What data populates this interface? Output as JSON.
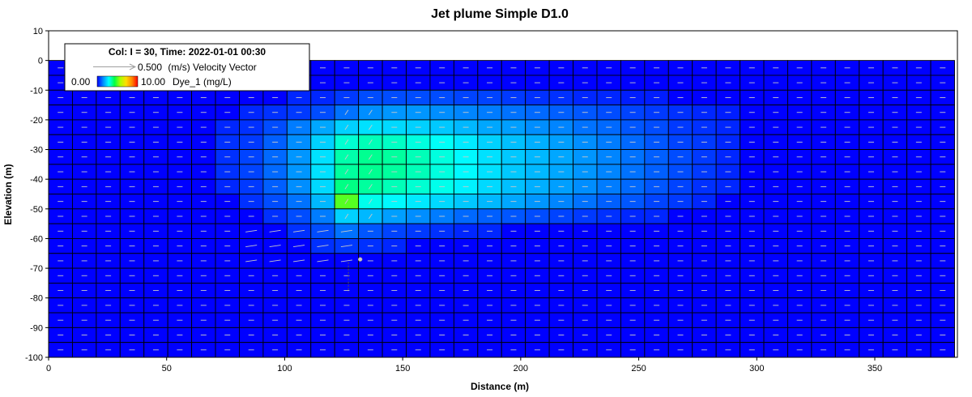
{
  "chart_data": {
    "type": "heatmap",
    "title": "Jet plume Simple D1.0",
    "xlabel": "Distance (m)",
    "ylabel": "Elevation (m)",
    "xlim": [
      0,
      385
    ],
    "ylim": [
      -100,
      10
    ],
    "xticks": [
      0,
      50,
      100,
      150,
      200,
      250,
      300,
      350
    ],
    "yticks": [
      10,
      0,
      -10,
      -20,
      -30,
      -40,
      -50,
      -60,
      -70,
      -80,
      -90,
      -100
    ],
    "grid": {
      "x_cells": 38,
      "cell_width_m": 10.1,
      "layers": 20,
      "layer_thickness_m": 5,
      "surface_elevation": 0,
      "bottom_elevation": -100
    },
    "legend": {
      "header": "Col: I = 30, Time: 2022-01-01 00:30",
      "vector_value": "0.500",
      "vector_label": "(m/s) Velocity Vector",
      "scale_min": "0.00",
      "scale_max": "10.00",
      "scale_label": "Dye_1 (mg/L)",
      "placement": "top-left"
    },
    "colormap": [
      "#0000ff",
      "#0088ff",
      "#00ffff",
      "#00ff44",
      "#aaff00",
      "#ffdd00",
      "#ff8800",
      "#ff0000"
    ],
    "vector_color": "#c8c8c8",
    "source_marker_color": "#c8c8c8",
    "concentration_rows": [
      {
        "z_top": -10,
        "z_bottom": -15,
        "cells": [
          [
            10,
            0.4
          ],
          [
            11,
            0.4
          ],
          [
            12,
            0.6
          ],
          [
            13,
            0.8
          ],
          [
            14,
            0.8
          ],
          [
            15,
            0.8
          ],
          [
            16,
            0.8
          ],
          [
            17,
            0.7
          ],
          [
            18,
            0.7
          ],
          [
            19,
            0.6
          ],
          [
            20,
            0.5
          ],
          [
            21,
            0.5
          ],
          [
            22,
            0.4
          ],
          [
            23,
            0.4
          ],
          [
            24,
            0.3
          ],
          [
            25,
            0.3
          ]
        ]
      },
      {
        "z_top": -15,
        "z_bottom": -20,
        "cells": [
          [
            8,
            0.4
          ],
          [
            9,
            0.5
          ],
          [
            10,
            0.6
          ],
          [
            11,
            0.8
          ],
          [
            12,
            1.2
          ],
          [
            13,
            1.5
          ],
          [
            14,
            1.6
          ],
          [
            15,
            1.6
          ],
          [
            16,
            1.5
          ],
          [
            17,
            1.4
          ],
          [
            18,
            1.3
          ],
          [
            19,
            1.2
          ],
          [
            20,
            1.1
          ],
          [
            21,
            1.0
          ],
          [
            22,
            0.9
          ],
          [
            23,
            0.8
          ],
          [
            24,
            0.7
          ],
          [
            25,
            0.6
          ],
          [
            26,
            0.5
          ],
          [
            27,
            0.4
          ],
          [
            28,
            0.3
          ]
        ]
      },
      {
        "z_top": -20,
        "z_bottom": -25,
        "cells": [
          [
            7,
            0.4
          ],
          [
            8,
            0.5
          ],
          [
            9,
            0.8
          ],
          [
            10,
            1.3
          ],
          [
            11,
            1.8
          ],
          [
            12,
            2.3
          ],
          [
            13,
            2.5
          ],
          [
            14,
            2.4
          ],
          [
            15,
            2.3
          ],
          [
            16,
            2.2
          ],
          [
            17,
            2.0
          ],
          [
            18,
            1.8
          ],
          [
            19,
            1.7
          ],
          [
            20,
            1.5
          ],
          [
            21,
            1.4
          ],
          [
            22,
            1.2
          ],
          [
            23,
            1.1
          ],
          [
            24,
            0.9
          ],
          [
            25,
            0.8
          ],
          [
            26,
            0.6
          ],
          [
            27,
            0.5
          ],
          [
            28,
            0.4
          ]
        ]
      },
      {
        "z_top": -25,
        "z_bottom": -30,
        "cells": [
          [
            7,
            0.5
          ],
          [
            8,
            0.6
          ],
          [
            9,
            1.0
          ],
          [
            10,
            1.5
          ],
          [
            11,
            2.3
          ],
          [
            12,
            3.2
          ],
          [
            13,
            3.4
          ],
          [
            14,
            3.3
          ],
          [
            15,
            3.1
          ],
          [
            16,
            2.9
          ],
          [
            17,
            2.6
          ],
          [
            18,
            2.3
          ],
          [
            19,
            2.1
          ],
          [
            20,
            1.9
          ],
          [
            21,
            1.7
          ],
          [
            22,
            1.5
          ],
          [
            23,
            1.3
          ],
          [
            24,
            1.1
          ],
          [
            25,
            0.9
          ],
          [
            26,
            0.7
          ],
          [
            27,
            0.6
          ],
          [
            28,
            0.4
          ]
        ]
      },
      {
        "z_top": -30,
        "z_bottom": -35,
        "cells": [
          [
            7,
            0.5
          ],
          [
            8,
            0.7
          ],
          [
            9,
            1.1
          ],
          [
            10,
            1.6
          ],
          [
            11,
            2.5
          ],
          [
            12,
            3.5
          ],
          [
            13,
            3.7
          ],
          [
            14,
            3.6
          ],
          [
            15,
            3.4
          ],
          [
            16,
            3.1
          ],
          [
            17,
            2.8
          ],
          [
            18,
            2.5
          ],
          [
            19,
            2.2
          ],
          [
            20,
            2.0
          ],
          [
            21,
            1.8
          ],
          [
            22,
            1.6
          ],
          [
            23,
            1.4
          ],
          [
            24,
            1.2
          ],
          [
            25,
            1.0
          ],
          [
            26,
            0.8
          ],
          [
            27,
            0.6
          ],
          [
            28,
            0.4
          ]
        ]
      },
      {
        "z_top": -35,
        "z_bottom": -40,
        "cells": [
          [
            7,
            0.5
          ],
          [
            8,
            0.7
          ],
          [
            9,
            1.1
          ],
          [
            10,
            1.6
          ],
          [
            11,
            2.5
          ],
          [
            12,
            3.6
          ],
          [
            13,
            3.7
          ],
          [
            14,
            3.6
          ],
          [
            15,
            3.4
          ],
          [
            16,
            3.1
          ],
          [
            17,
            2.8
          ],
          [
            18,
            2.5
          ],
          [
            19,
            2.2
          ],
          [
            20,
            2.0
          ],
          [
            21,
            1.8
          ],
          [
            22,
            1.6
          ],
          [
            23,
            1.4
          ],
          [
            24,
            1.2
          ],
          [
            25,
            1.0
          ],
          [
            26,
            0.8
          ],
          [
            27,
            0.6
          ],
          [
            28,
            0.4
          ]
        ]
      },
      {
        "z_top": -40,
        "z_bottom": -45,
        "cells": [
          [
            7,
            0.4
          ],
          [
            8,
            0.6
          ],
          [
            9,
            1.0
          ],
          [
            10,
            1.5
          ],
          [
            11,
            2.4
          ],
          [
            12,
            3.8
          ],
          [
            13,
            3.6
          ],
          [
            14,
            3.4
          ],
          [
            15,
            3.2
          ],
          [
            16,
            3.0
          ],
          [
            17,
            2.7
          ],
          [
            18,
            2.4
          ],
          [
            19,
            2.1
          ],
          [
            20,
            1.9
          ],
          [
            21,
            1.7
          ],
          [
            22,
            1.5
          ],
          [
            23,
            1.3
          ],
          [
            24,
            1.1
          ],
          [
            25,
            0.9
          ],
          [
            26,
            0.7
          ],
          [
            27,
            0.5
          ],
          [
            28,
            0.4
          ]
        ]
      },
      {
        "z_top": -45,
        "z_bottom": -50,
        "cells": [
          [
            8,
            0.5
          ],
          [
            9,
            0.8
          ],
          [
            10,
            1.2
          ],
          [
            11,
            2.0
          ],
          [
            12,
            5.0
          ],
          [
            13,
            3.0
          ],
          [
            14,
            2.8
          ],
          [
            15,
            2.6
          ],
          [
            16,
            2.4
          ],
          [
            17,
            2.2
          ],
          [
            18,
            2.0
          ],
          [
            19,
            1.8
          ],
          [
            20,
            1.6
          ],
          [
            21,
            1.4
          ],
          [
            22,
            1.2
          ],
          [
            23,
            1.0
          ],
          [
            24,
            0.9
          ],
          [
            25,
            0.7
          ],
          [
            26,
            0.6
          ],
          [
            27,
            0.4
          ]
        ]
      },
      {
        "z_top": -50,
        "z_bottom": -55,
        "cells": [
          [
            9,
            0.5
          ],
          [
            10,
            0.8
          ],
          [
            11,
            1.3
          ],
          [
            12,
            2.3
          ],
          [
            13,
            2.0
          ],
          [
            14,
            1.7
          ],
          [
            15,
            1.5
          ],
          [
            16,
            1.3
          ],
          [
            17,
            1.1
          ],
          [
            18,
            1.0
          ],
          [
            19,
            0.9
          ],
          [
            20,
            0.8
          ],
          [
            21,
            0.7
          ],
          [
            22,
            0.6
          ],
          [
            23,
            0.5
          ],
          [
            24,
            0.4
          ],
          [
            25,
            0.4
          ]
        ]
      },
      {
        "z_top": -55,
        "z_bottom": -60,
        "cells": [
          [
            10,
            0.5
          ],
          [
            11,
            0.8
          ],
          [
            12,
            1.2
          ],
          [
            13,
            0.9
          ],
          [
            14,
            0.7
          ],
          [
            15,
            0.6
          ],
          [
            16,
            0.5
          ],
          [
            17,
            0.4
          ],
          [
            18,
            0.4
          ]
        ]
      },
      {
        "z_top": -60,
        "z_bottom": -65,
        "cells": [
          [
            11,
            0.5
          ],
          [
            12,
            0.6
          ],
          [
            13,
            0.5
          ],
          [
            14,
            0.4
          ]
        ]
      }
    ]
  }
}
